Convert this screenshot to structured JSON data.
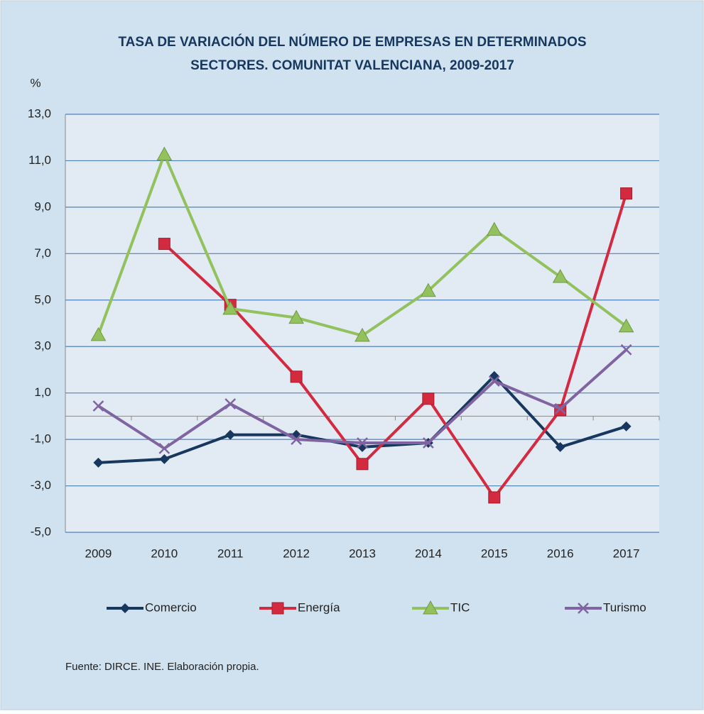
{
  "chart_data": {
    "type": "line",
    "title": [
      "TASA DE VARIACIÓN DEL NÚMERO DE EMPRESAS EN DETERMINADOS",
      "SECTORES. COMUNITAT VALENCIANA, 2009-2017"
    ],
    "y_label": "%",
    "source": "Fuente:  DIRCE. INE. Elaboración  propia.",
    "categories": [
      "2009",
      "2010",
      "2011",
      "2012",
      "2013",
      "2014",
      "2015",
      "2016",
      "2017"
    ],
    "series": [
      {
        "name": "Comercio",
        "color": "#17375e",
        "marker": "diamond",
        "values": [
          -2.0,
          -1.85,
          -0.8,
          -0.8,
          -1.33,
          -1.15,
          1.73,
          -1.33,
          -0.44
        ]
      },
      {
        "name": "Energía",
        "color": "#d42a40",
        "marker": "square",
        "values": [
          null,
          7.42,
          4.79,
          1.7,
          -2.06,
          0.75,
          -3.5,
          0.26,
          9.59
        ]
      },
      {
        "name": "TIC",
        "color": "#92c15d",
        "marker": "triangle",
        "values": [
          3.5,
          11.27,
          4.63,
          4.24,
          3.47,
          5.4,
          8.03,
          6.0,
          3.87
        ]
      },
      {
        "name": "Turismo",
        "color": "#8064a2",
        "marker": "x",
        "values": [
          0.44,
          -1.39,
          0.53,
          -1.0,
          -1.15,
          -1.15,
          1.51,
          0.32,
          2.86
        ]
      }
    ],
    "ylim": [
      -5,
      13
    ],
    "yticks": [
      {
        "value": -5,
        "label": "-5,0"
      },
      {
        "value": -3,
        "label": "-3,0"
      },
      {
        "value": -1,
        "label": "-1,0"
      },
      {
        "value": 1,
        "label": "1,0"
      },
      {
        "value": 3,
        "label": "3,0"
      },
      {
        "value": 5,
        "label": "5,0"
      },
      {
        "value": 7,
        "label": "7,0"
      },
      {
        "value": 9,
        "label": "9,0"
      },
      {
        "value": 11,
        "label": "11,0"
      },
      {
        "value": 13,
        "label": "13,0"
      }
    ],
    "grid": true,
    "legend": "bottom"
  }
}
